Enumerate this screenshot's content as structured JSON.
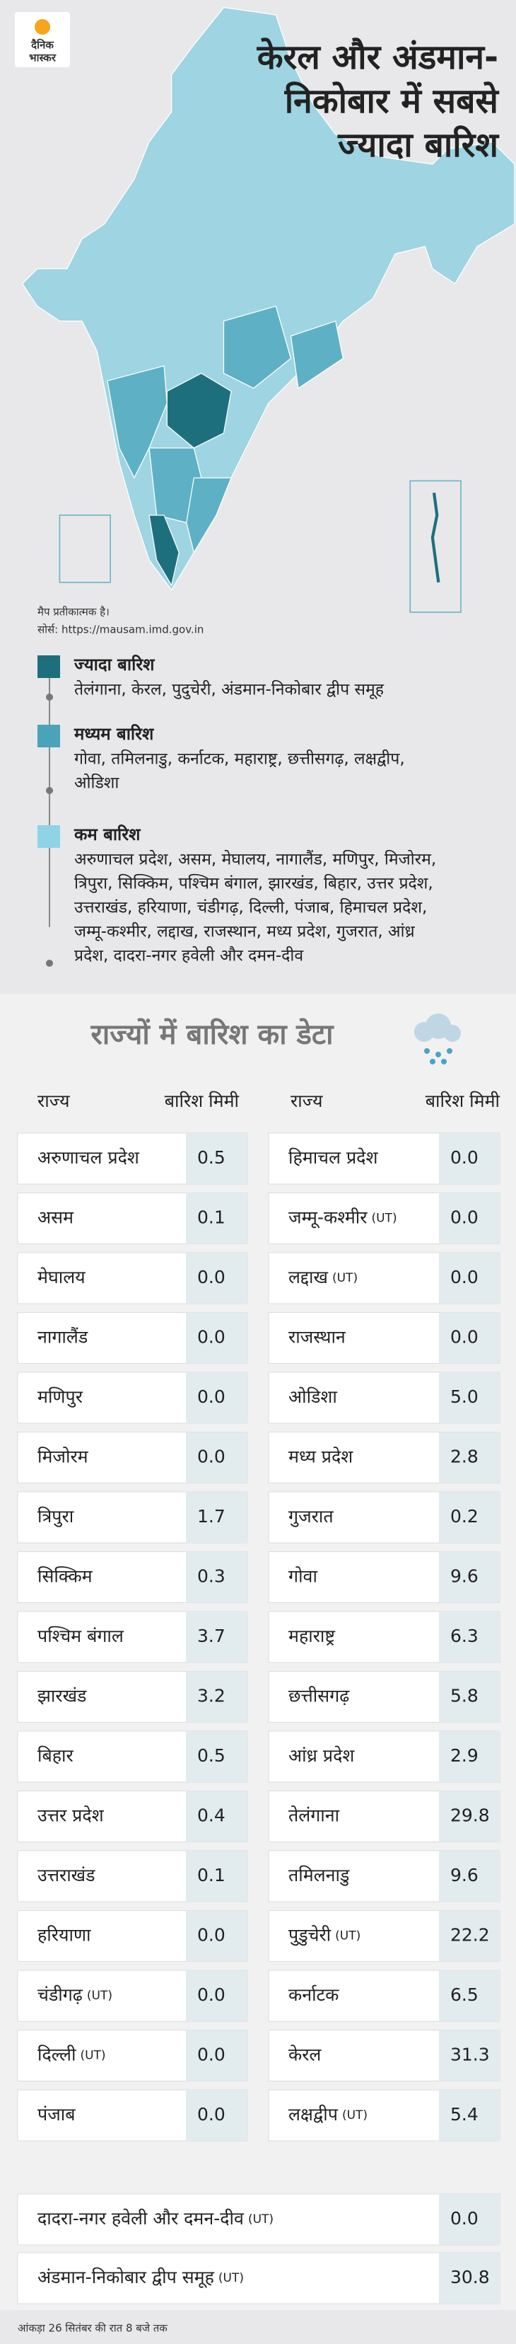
{
  "header": {
    "logo": [
      "दैनिक",
      "भास्कर"
    ],
    "title": [
      "केरल और अंडमान-",
      "निकोबार में सबसे",
      "ज्यादा बारिश"
    ]
  },
  "map": {
    "note": "मैप प्रतीकात्मक है।",
    "source": "सोर्स: https://mausam.imd.gov.in"
  },
  "legend": [
    {
      "title": "ज्यादा बारिश",
      "lines": [
        "तेलंगाना, केरल, पुदुचेरी, अंडमान-निकोबार द्वीप समूह"
      ]
    },
    {
      "title": "मध्यम बारिश",
      "lines": [
        "गोवा, तमिलनाडु, कर्नाटक, महाराष्ट्र, छत्तीसगढ़, लक्षद्वीप,",
        "ओडिशा"
      ]
    },
    {
      "title": "कम बारिश",
      "lines": [
        "अरुणाचल प्रदेश, असम, मेघालय, नागालैंड, मणिपुर, मिजोरम,",
        "त्रिपुरा, सिक्किम, पश्चिम बंगाल, झारखंड, बिहार, उत्तर प्रदेश,",
        "उत्तराखंड, हरियाणा, चंडीगढ़, दिल्ली, पंजाब, हिमाचल प्रदेश,",
        "जम्मू-कश्मीर, लद्दाख, राजस्थान, मध्य प्रदेश, गुजरात, आंध्र",
        "प्रदेश, दादरा-नगर हवेली और दमन-दीव"
      ]
    }
  ],
  "table": {
    "title": "राज्यों में बारिश का डेटा",
    "headers": [
      "राज्य",
      "बारिश मिमी",
      "राज्य",
      "बारिश मिमी"
    ],
    "left": [
      {
        "name": "अरुणाचल प्रदेश",
        "value": "0.5"
      },
      {
        "name": "असम",
        "value": "0.1"
      },
      {
        "name": "मेघालय",
        "value": "0.0"
      },
      {
        "name": "नागालैंड",
        "value": "0.0"
      },
      {
        "name": "मणिपुर",
        "value": "0.0"
      },
      {
        "name": "मिजोरम",
        "value": "0.0"
      },
      {
        "name": "त्रिपुरा",
        "value": "1.7"
      },
      {
        "name": "सिक्किम",
        "value": "0.3"
      },
      {
        "name": "पश्चिम बंगाल",
        "value": "3.7"
      },
      {
        "name": "झारखंड",
        "value": "3.2"
      },
      {
        "name": "बिहार",
        "value": "0.5"
      },
      {
        "name": "उत्तर प्रदेश",
        "value": "0.4"
      },
      {
        "name": "उत्तराखंड",
        "value": "0.1"
      },
      {
        "name": "हरियाणा",
        "value": "0.0"
      },
      {
        "name": "चंडीगढ़",
        "tag": "(UT)",
        "value": "0.0"
      },
      {
        "name": "दिल्ली",
        "tag": "(UT)",
        "value": "0.0"
      },
      {
        "name": "पंजाब",
        "value": "0.0"
      }
    ],
    "right": [
      {
        "name": "हिमाचल प्रदेश",
        "value": "0.0"
      },
      {
        "name": "जम्मू-कश्मीर",
        "tag": "(UT)",
        "value": "0.0"
      },
      {
        "name": "लद्दाख",
        "tag": "(UT)",
        "value": "0.0"
      },
      {
        "name": "राजस्थान",
        "value": "0.0"
      },
      {
        "name": "ओडिशा",
        "value": "5.0"
      },
      {
        "name": "मध्य प्रदेश",
        "value": "2.8"
      },
      {
        "name": "गुजरात",
        "value": "0.2"
      },
      {
        "name": "गोवा",
        "value": "9.6"
      },
      {
        "name": "महाराष्ट्र",
        "value": "6.3"
      },
      {
        "name": "छत्तीसगढ़",
        "value": "5.8"
      },
      {
        "name": "आंध्र प्रदेश",
        "value": "2.9"
      },
      {
        "name": "तेलंगाना",
        "value": "29.8"
      },
      {
        "name": "तमिलनाडु",
        "value": "9.6"
      },
      {
        "name": "पुडुचेरी",
        "tag": "(UT)",
        "value": "22.2"
      },
      {
        "name": "कर्नाटक",
        "value": "6.5"
      },
      {
        "name": "केरल",
        "value": "31.3"
      },
      {
        "name": "लक्षद्वीप",
        "tag": "(UT)",
        "value": "5.4"
      }
    ],
    "full": [
      {
        "name": "दादरा-नगर हवेली और दमन-दीव",
        "tag": "(UT)",
        "value": "0.0"
      },
      {
        "name": "अंडमान-निकोबार द्वीप समूह",
        "tag": "(UT)",
        "value": "30.8"
      }
    ]
  },
  "footer": "आंकड़ा 26 सितंबर की रात 8 बजे तक"
}
